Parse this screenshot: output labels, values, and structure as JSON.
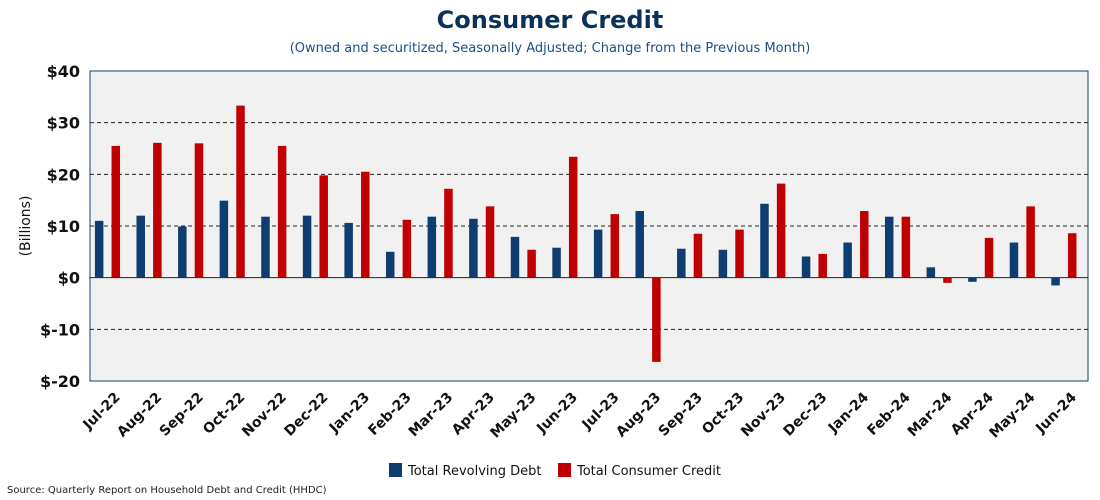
{
  "chart_data": {
    "type": "bar",
    "title": "Consumer Credit",
    "subtitle": "(Owned and securitized, Seasonally Adjusted; Change from the Previous Month)",
    "ylabel": "(Billions)",
    "xlabel": "",
    "ylim": [
      -20,
      40
    ],
    "yticks": [
      40,
      30,
      20,
      10,
      0,
      -10,
      -20
    ],
    "ytick_labels": [
      "$40",
      "$30",
      "$20",
      "$10",
      "$0",
      "$-10",
      "$-20"
    ],
    "grid": true,
    "legend_position": "bottom-center",
    "categories": [
      "Jul-22",
      "Aug-22",
      "Sep-22",
      "Oct-22",
      "Nov-22",
      "Dec-22",
      "Jan-23",
      "Feb-23",
      "Mar-23",
      "Apr-23",
      "May-23",
      "Jun-23",
      "Jul-23",
      "Aug-23",
      "Sep-23",
      "Oct-23",
      "Nov-23",
      "Dec-23",
      "Jan-24",
      "Feb-24",
      "Mar-24",
      "Apr-24",
      "May-24",
      "Jun-24"
    ],
    "series": [
      {
        "name": "Total Revolving Debt",
        "color": "#0e3d72",
        "values": [
          11.0,
          12.0,
          9.9,
          14.9,
          11.8,
          12.0,
          10.6,
          5.0,
          11.8,
          11.4,
          7.9,
          5.8,
          9.3,
          12.9,
          5.6,
          5.4,
          14.3,
          4.1,
          6.8,
          11.8,
          2.0,
          -0.8,
          6.8,
          -1.5
        ]
      },
      {
        "name": "Total Consumer Credit",
        "color": "#c00000",
        "values": [
          25.5,
          26.1,
          26.0,
          33.3,
          25.5,
          19.8,
          20.5,
          11.2,
          17.2,
          13.8,
          5.4,
          23.4,
          12.3,
          -16.3,
          8.5,
          9.3,
          18.2,
          4.6,
          12.9,
          11.8,
          -1.0,
          7.7,
          13.8,
          8.6
        ]
      }
    ]
  },
  "source_note": "Source: Quarterly Report on Household Debt and Credit (HHDC)"
}
